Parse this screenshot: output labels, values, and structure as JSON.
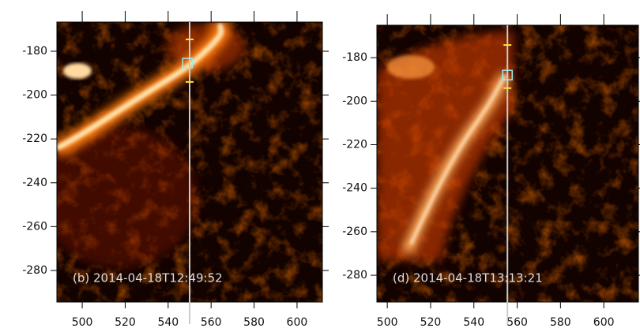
{
  "chart_data": [
    {
      "type": "image",
      "label": "(b) 2014-04-18T12:49:52",
      "xlim": [
        488.2,
        611.8
      ],
      "ylim": [
        -294.4,
        -166.7
      ],
      "xticks": [
        500,
        520,
        540,
        560,
        580,
        600
      ],
      "yticks": [
        -180,
        -200,
        -220,
        -240,
        -260,
        -280
      ],
      "slit_x": 550,
      "slit_ticks": [
        -174.6,
        -194
      ],
      "marker": {
        "x": 549,
        "y": -185.4
      }
    },
    {
      "type": "image",
      "label": "(d) 2014-04-18T13:13:21",
      "xlim": [
        495.2,
        616
      ],
      "ylim": [
        -292.3,
        -165.1
      ],
      "xticks": [
        500,
        520,
        540,
        560,
        580,
        600
      ],
      "yticks": [
        -180,
        -200,
        -220,
        -240,
        -260,
        -280
      ],
      "slit_x": 555.5,
      "slit_ticks": [
        -174.2,
        -194
      ],
      "marker": {
        "x": 555.5,
        "y": -188
      }
    }
  ]
}
